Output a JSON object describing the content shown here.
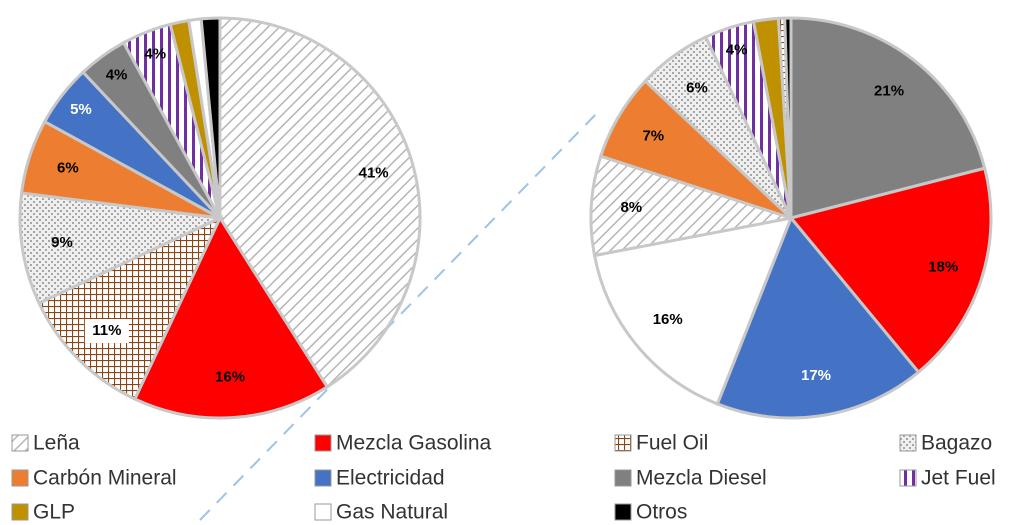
{
  "chart_data": [
    {
      "type": "pie",
      "categories": [
        "Leña",
        "Mezcla Gasolina",
        "Fuel Oil",
        "Bagazo",
        "Carbón Mineral",
        "Electricidad",
        "Mezcla Diesel",
        "Jet Fuel",
        "GLP",
        "Gas Natural",
        "Otros"
      ],
      "values": [
        41,
        16,
        11,
        9,
        6,
        5,
        4,
        4,
        1.5,
        1,
        1.5
      ],
      "value_labels": [
        "41%",
        "16%",
        "11%",
        "9%",
        "6%",
        "5%",
        "4%",
        "4%",
        null,
        null,
        null
      ],
      "colors": [
        "#b5b5b5",
        "#ff0000",
        "#8b4513",
        "#a6a6a6",
        "#ed7d31",
        "#4472c4",
        "#808080",
        "#7030a0",
        "#bf9000",
        "#ffffff",
        "#000000"
      ],
      "patterns": [
        "diagonal",
        "solid",
        "grid",
        "dots",
        "solid",
        "solid",
        "solid",
        "stripes",
        "solid",
        "solid",
        "solid"
      ]
    },
    {
      "type": "pie",
      "categories": [
        "Mezcla Diesel",
        "Mezcla Gasolina",
        "Electricidad",
        "Gas Natural",
        "Leña",
        "Carbón Mineral",
        "Bagazo",
        "Jet Fuel",
        "GLP",
        "Fuel Oil",
        "Otros"
      ],
      "values": [
        21,
        18,
        17,
        16,
        8,
        7,
        6,
        4,
        2,
        0.5,
        0.5
      ],
      "value_labels": [
        "21%",
        "18%",
        "17%",
        "16%",
        "8%",
        "7%",
        "6%",
        "4%",
        null,
        null,
        null
      ],
      "colors": [
        "#808080",
        "#ff0000",
        "#4472c4",
        "#ffffff",
        "#b5b5b5",
        "#ed7d31",
        "#a6a6a6",
        "#7030a0",
        "#bf9000",
        "#8b4513",
        "#000000"
      ],
      "patterns": [
        "solid",
        "solid",
        "solid",
        "solid",
        "diagonal",
        "solid",
        "dots",
        "stripes",
        "solid",
        "grid",
        "solid"
      ]
    }
  ]
}
